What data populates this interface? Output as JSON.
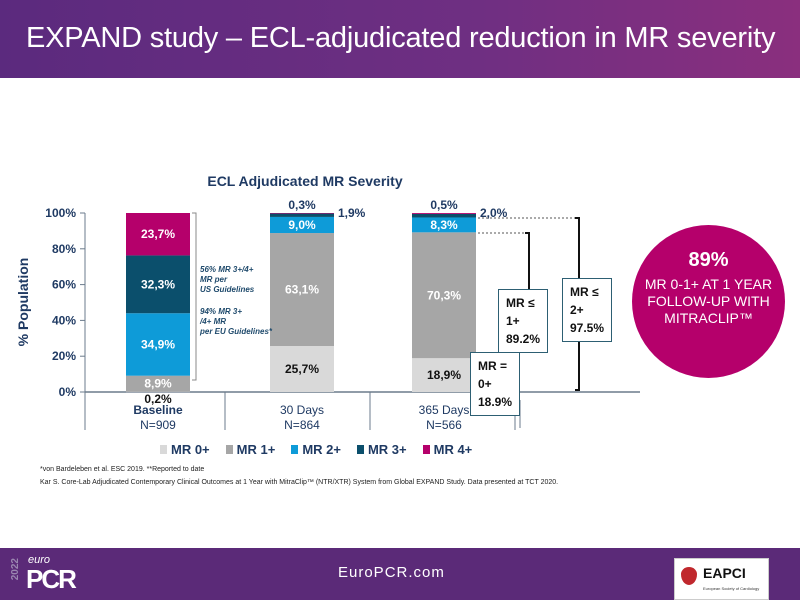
{
  "header": {
    "title": "EXPAND study – ECL-adjudicated reduction in MR severity"
  },
  "chart_data": {
    "type": "bar",
    "stacked": true,
    "title": "ECL Adjudicated MR Severity",
    "ylabel": "% Population",
    "ylim": [
      0,
      100
    ],
    "yticks": [
      "0%",
      "20%",
      "40%",
      "60%",
      "80%",
      "100%"
    ],
    "categories": [
      "Baseline",
      "30 Days",
      "365 Days"
    ],
    "category_n": [
      "N=909",
      "N=864",
      "N=566"
    ],
    "series": [
      {
        "name": "MR 0+",
        "color": "#d9d9d9",
        "values": [
          0.2,
          25.7,
          18.9
        ],
        "labels": [
          "0,2%",
          "25,7%",
          "18,9%"
        ]
      },
      {
        "name": "MR 1+",
        "color": "#a6a6a6",
        "values": [
          8.9,
          63.1,
          70.3
        ],
        "labels": [
          "8,9%",
          "63,1%",
          "70,3%"
        ]
      },
      {
        "name": "MR 2+",
        "color": "#0e9bd8",
        "values": [
          34.9,
          9.0,
          8.3
        ],
        "labels": [
          "34,9%",
          "9,0%",
          "8,3%"
        ]
      },
      {
        "name": "MR 3+",
        "color": "#0b4f6c",
        "values": [
          32.3,
          1.9,
          2.0
        ],
        "labels": [
          "32,3%",
          "1,9%",
          "2,0%"
        ]
      },
      {
        "name": "MR 4+",
        "color": "#b5006b",
        "values": [
          23.7,
          0.3,
          0.5
        ],
        "labels": [
          "23,7%",
          "0,3%",
          "0,5%"
        ]
      }
    ],
    "annotations": {
      "us": "56% MR 3+/4+ MR per US Guidelines",
      "eu": "94% MR 3+ /4+ MR per EU Guidelines*",
      "mr0": [
        "MR =",
        "0+",
        "18.9%"
      ],
      "mr1": [
        "MR ≤",
        "1+",
        "89.2%"
      ],
      "mr2": [
        "MR ≤",
        "2+",
        "97.5%"
      ]
    },
    "legend_position": "bottom"
  },
  "callout": {
    "value": "89%",
    "lines": [
      "MR 0-1+ AT 1 YEAR",
      "FOLLOW-UP WITH",
      "MITRACLIP™"
    ]
  },
  "footnotes": [
    "*von Bardeleben et al. ESC 2019. **Reported to date",
    "Kar S. Core-Lab Adjudicated Contemporary Clinical Outcomes at 1 Year with MitraClip™ (NTR/XTR) System from Global EXPAND Study. Data presented at TCT 2020."
  ],
  "footer": {
    "url": "EuroPCR.com",
    "logo_year": "2022",
    "logo_euro": "euro",
    "logo_pcr": "PCR",
    "partner": "EAPCI",
    "partner_sub": "European Society of Cardiology"
  }
}
